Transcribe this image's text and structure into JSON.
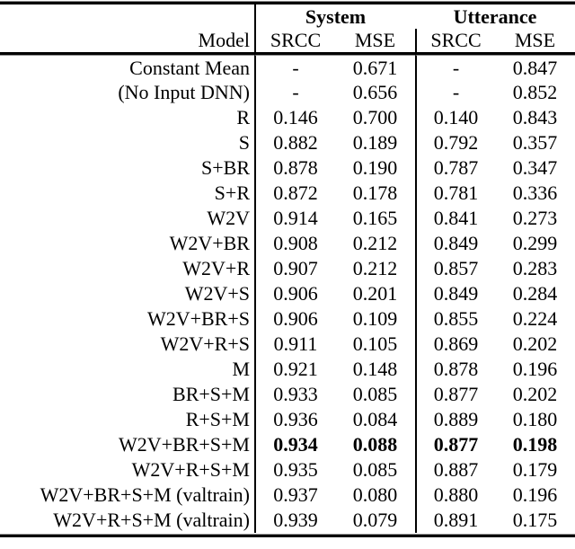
{
  "table": {
    "group_headers": {
      "system": "System",
      "utterance": "Utterance"
    },
    "headers": {
      "model": "Model",
      "srcc": "SRCC",
      "mse": "MSE"
    },
    "value_columns": [
      "system-srcc",
      "system-mse",
      "utterance-srcc",
      "utterance-mse"
    ],
    "rows": [
      {
        "model": "Constant Mean",
        "values": [
          "-",
          "0.671",
          "-",
          "0.847"
        ],
        "bold": false
      },
      {
        "model": "(No Input DNN)",
        "values": [
          "-",
          "0.656",
          "-",
          "0.852"
        ],
        "bold": false
      },
      {
        "model": "R",
        "values": [
          "0.146",
          "0.700",
          "0.140",
          "0.843"
        ],
        "bold": false
      },
      {
        "model": "S",
        "values": [
          "0.882",
          "0.189",
          "0.792",
          "0.357"
        ],
        "bold": false
      },
      {
        "model": "S+BR",
        "values": [
          "0.878",
          "0.190",
          "0.787",
          "0.347"
        ],
        "bold": false
      },
      {
        "model": "S+R",
        "values": [
          "0.872",
          "0.178",
          "0.781",
          "0.336"
        ],
        "bold": false
      },
      {
        "model": "W2V",
        "values": [
          "0.914",
          "0.165",
          "0.841",
          "0.273"
        ],
        "bold": false
      },
      {
        "model": "W2V+BR",
        "values": [
          "0.908",
          "0.212",
          "0.849",
          "0.299"
        ],
        "bold": false
      },
      {
        "model": "W2V+R",
        "values": [
          "0.907",
          "0.212",
          "0.857",
          "0.283"
        ],
        "bold": false
      },
      {
        "model": "W2V+S",
        "values": [
          "0.906",
          "0.201",
          "0.849",
          "0.284"
        ],
        "bold": false
      },
      {
        "model": "W2V+BR+S",
        "values": [
          "0.906",
          "0.109",
          "0.855",
          "0.224"
        ],
        "bold": false
      },
      {
        "model": "W2V+R+S",
        "values": [
          "0.911",
          "0.105",
          "0.869",
          "0.202"
        ],
        "bold": false
      },
      {
        "model": "M",
        "values": [
          "0.921",
          "0.148",
          "0.878",
          "0.196"
        ],
        "bold": false
      },
      {
        "model": "BR+S+M",
        "values": [
          "0.933",
          "0.085",
          "0.877",
          "0.202"
        ],
        "bold": false
      },
      {
        "model": "R+S+M",
        "values": [
          "0.936",
          "0.084",
          "0.889",
          "0.180"
        ],
        "bold": false
      },
      {
        "model": "W2V+BR+S+M",
        "values": [
          "0.934",
          "0.088",
          "0.877",
          "0.198"
        ],
        "bold": true
      },
      {
        "model": "W2V+R+S+M",
        "values": [
          "0.935",
          "0.085",
          "0.887",
          "0.179"
        ],
        "bold": false
      },
      {
        "model": "W2V+BR+S+M (valtrain)",
        "values": [
          "0.937",
          "0.080",
          "0.880",
          "0.196"
        ],
        "bold": false
      },
      {
        "model": "W2V+R+S+M (valtrain)",
        "values": [
          "0.939",
          "0.079",
          "0.891",
          "0.175"
        ],
        "bold": false
      }
    ]
  }
}
